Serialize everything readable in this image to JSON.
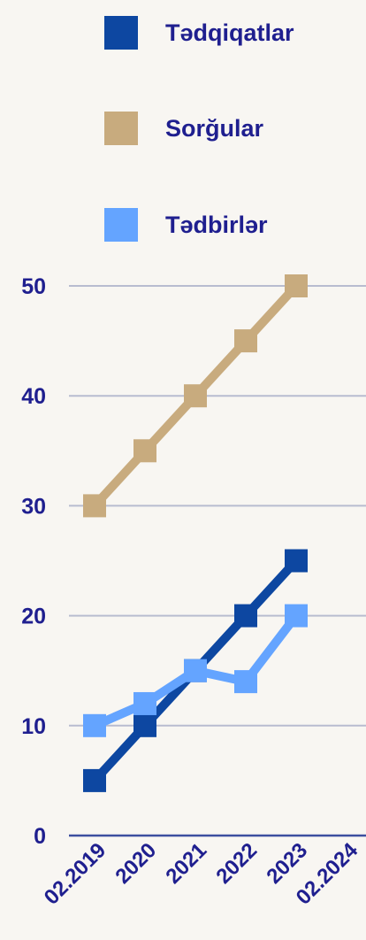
{
  "chart_data": {
    "type": "line",
    "title": "",
    "xlabel": "",
    "ylabel": "",
    "x_ticks": [
      "02.2019",
      "2020",
      "2021",
      "2022",
      "2023",
      "02.2024"
    ],
    "x_points": [
      2019,
      2020,
      2021,
      2022,
      2023
    ],
    "x_range": [
      2019,
      2024
    ],
    "y_ticks": [
      0,
      10,
      20,
      30,
      40,
      50
    ],
    "ylim": [
      0,
      50
    ],
    "grid": true,
    "legend_position": "top",
    "series": [
      {
        "name": "Tədqiqatlar",
        "color": "#0d47a1",
        "values": [
          5,
          10,
          15,
          20,
          25
        ]
      },
      {
        "name": "Sorğular",
        "color": "#c8ab7e",
        "values": [
          30,
          35,
          40,
          45,
          50
        ]
      },
      {
        "name": "Tədbirlər",
        "color": "#64a4ff",
        "values": [
          10,
          12,
          15,
          14,
          20
        ]
      }
    ],
    "colors": {
      "background": "#f8f6f2",
      "gridline": "#b8bcd0",
      "axis": "#3d4f9f",
      "text": "#1f1f8f"
    }
  }
}
